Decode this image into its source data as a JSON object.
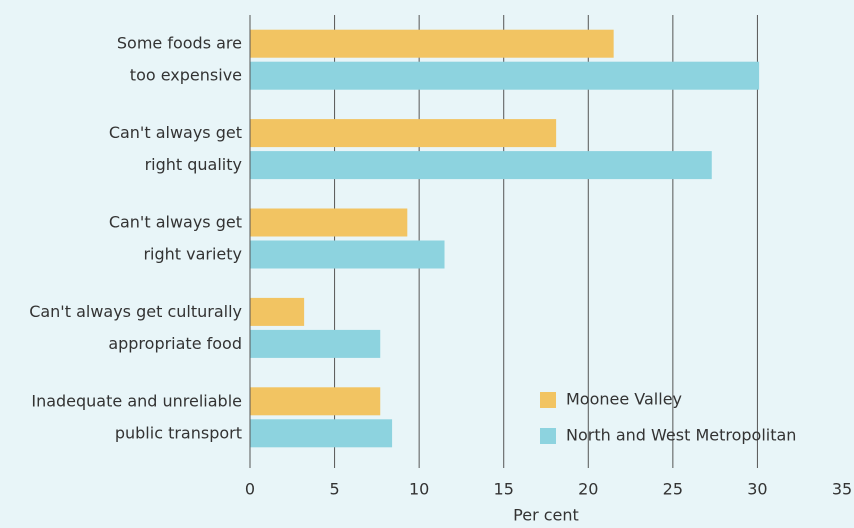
{
  "chart_data": {
    "type": "barh",
    "categories": [
      [
        "Some foods are",
        "too expensive"
      ],
      [
        "Can't always get",
        "right quality"
      ],
      [
        "Can't always get",
        "right variety"
      ],
      [
        "Can't always get culturally",
        "appropriate food"
      ],
      [
        "Inadequate and unreliable",
        "public transport"
      ]
    ],
    "series": [
      {
        "name": "Moonee Valley",
        "color": "#f2c462",
        "values": [
          21.5,
          18.1,
          9.3,
          3.2,
          7.7
        ]
      },
      {
        "name": "North and West Metropolitan",
        "color": "#8dd3df",
        "values": [
          30.1,
          27.3,
          11.5,
          7.7,
          8.4
        ]
      }
    ],
    "xlabel": "Per cent",
    "xlim": [
      0,
      35
    ],
    "xticks": [
      0,
      5,
      10,
      15,
      20,
      25,
      30,
      35
    ],
    "grid": true,
    "legend": "lower right"
  }
}
